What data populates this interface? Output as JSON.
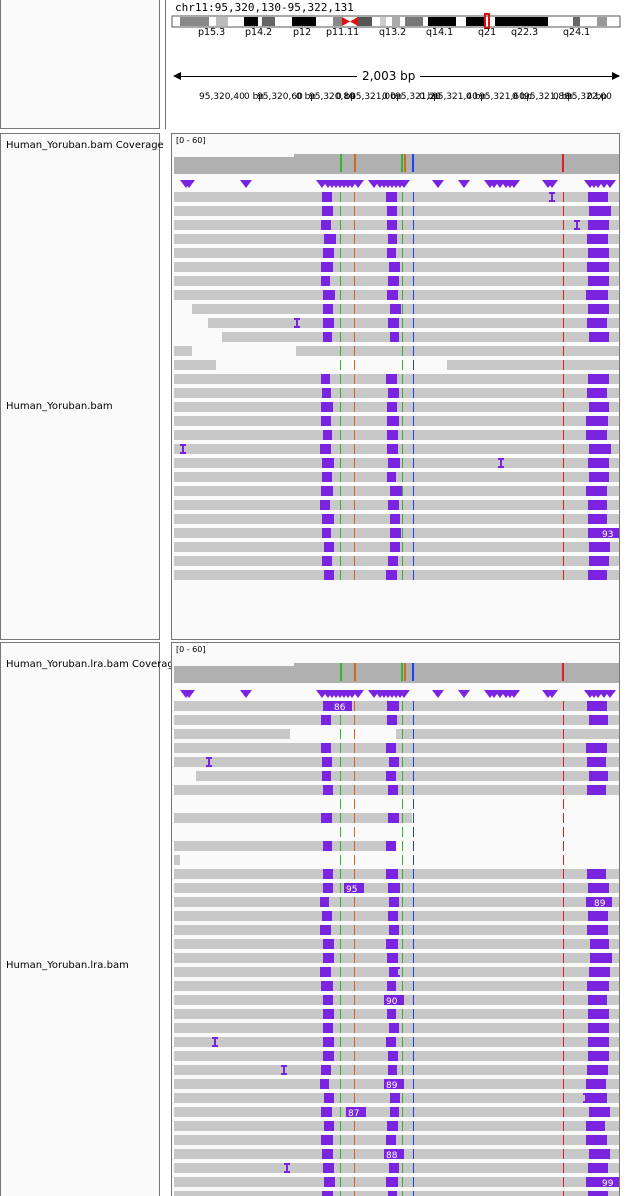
{
  "header": {
    "locus": "chr11:95,320,130-95,322,131",
    "span": "2,003 bp",
    "bands": [
      "p15.3",
      "p14.2",
      "p12",
      "p11.11",
      "q13.2",
      "q14.1",
      "q21",
      "q22.3",
      "q24.1"
    ],
    "ruler_ticks": [
      "95,320,400 bp",
      "95,320,600 bp",
      "95,320,800 bp",
      "95,321,000 bp",
      "95,321,200 bp",
      "95,321,400 bp",
      "95,321,600 bp",
      "95,321,800 bp",
      "95,322,000 bp"
    ],
    "ruler_tick_display": [
      "95,320,40",
      "0 bp",
      "95,320,60",
      "0 bp",
      "95,320,80",
      "0 bp",
      "95,321,00",
      "0 bp",
      "95,321,20",
      "0 bp",
      "95,321,40",
      "0 bp",
      "95,321,60",
      "0 bp",
      "95,321,80",
      "0 bp",
      "95,322,00",
      "0 bp"
    ]
  },
  "tracks": [
    {
      "coverage_name": "Human_Yoruban.bam Coverage",
      "alignment_name": "Human_Yoruban.bam",
      "range": "[0 - 60]",
      "insertion_labels": [
        "93"
      ]
    },
    {
      "coverage_name": "Human_Yoruban.lra.bam Coverage",
      "alignment_name": "Human_Yoruban.lra.bam",
      "range": "[0 - 60]",
      "insertion_labels": [
        "86",
        "95",
        "89",
        "90",
        "89",
        "87",
        "88",
        "99"
      ]
    }
  ],
  "colors": {
    "read": "#c8c8c8",
    "insertion": "#7b24e0",
    "coverage": "#b0b0b0",
    "mismatch_c": "#1f3fff",
    "mismatch_g": "#d2691e",
    "mismatch_a": "#2fb82f",
    "mismatch_t": "#e02020",
    "centromere": "#e01010"
  }
}
